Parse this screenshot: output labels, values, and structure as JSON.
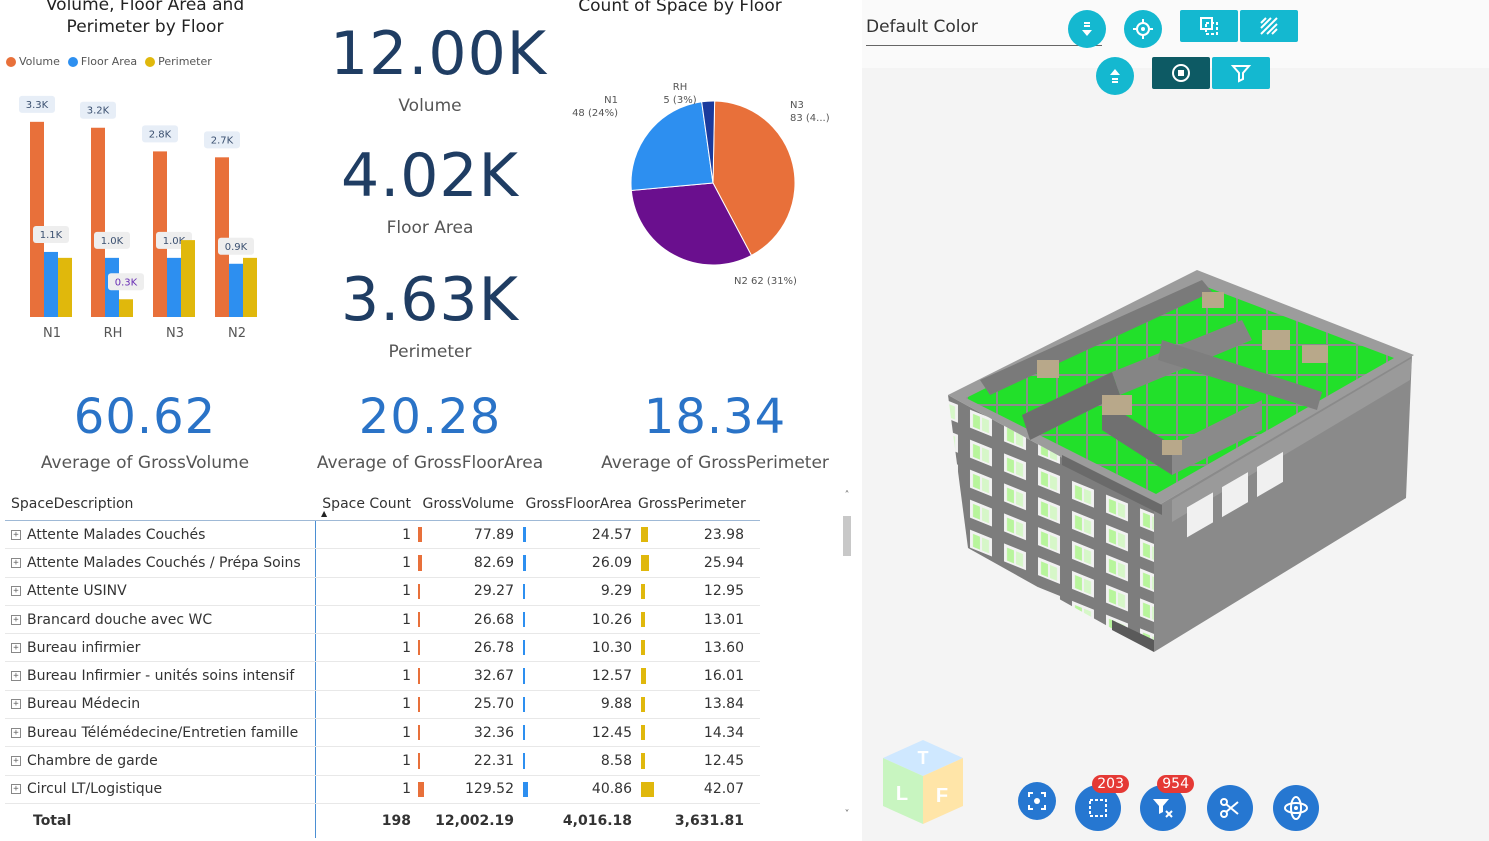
{
  "bar_chart": {
    "title": "Volume, Floor Area and Perimeter by Floor",
    "legend": [
      {
        "name": "Volume",
        "color": "#e8703a"
      },
      {
        "name": "Floor Area",
        "color": "#2d8ff0"
      },
      {
        "name": "Perimeter",
        "color": "#e0b80c"
      }
    ]
  },
  "chart_data": [
    {
      "type": "bar",
      "title": "Volume, Floor Area and Perimeter by Floor",
      "categories": [
        "N1",
        "RH",
        "N3",
        "N2"
      ],
      "series": [
        {
          "name": "Volume",
          "values": [
            3.3,
            3.2,
            2.8,
            2.7
          ],
          "labels": [
            "3.3K",
            "3.2K",
            "2.8K",
            "2.7K"
          ],
          "color": "#e8703a"
        },
        {
          "name": "Floor Area",
          "values": [
            1.1,
            1.0,
            1.0,
            0.9
          ],
          "labels": [
            "1.1K",
            "1.0K",
            "1.0K",
            "0.9K"
          ],
          "color": "#2d8ff0"
        },
        {
          "name": "Perimeter",
          "values": [
            1.0,
            0.3,
            1.3,
            1.0
          ],
          "labels": [
            "",
            "0.3K",
            "",
            ""
          ],
          "color": "#e0b80c"
        }
      ],
      "ylim": [
        0,
        3.5
      ],
      "legend_position": "top-left"
    },
    {
      "type": "pie",
      "title": "Count of Space by Floor",
      "slices": [
        {
          "name": "N3",
          "value": 83,
          "label": "N3\n83 (4...)",
          "color": "#e8703a"
        },
        {
          "name": "N2",
          "value": 62,
          "label": "N2 62 (31%)",
          "color": "#6a0f8e"
        },
        {
          "name": "N1",
          "value": 48,
          "label": "N1\n48 (24%)",
          "color": "#2d8ff0"
        },
        {
          "name": "RH",
          "value": 5,
          "label": "RH\n5 (3%)",
          "color": "#1a3a9c"
        }
      ]
    }
  ],
  "kpis": [
    {
      "value": "12.00K",
      "label": "Volume"
    },
    {
      "value": "4.02K",
      "label": "Floor Area"
    },
    {
      "value": "3.63K",
      "label": "Perimeter"
    }
  ],
  "averages": [
    {
      "value": "60.62",
      "label": "Average of GrossVolume"
    },
    {
      "value": "20.28",
      "label": "Average of GrossFloorArea"
    },
    {
      "value": "18.34",
      "label": "Average of GrossPerimeter"
    }
  ],
  "pie": {
    "title": "Count of Space by Floor"
  },
  "table": {
    "headers": [
      "SpaceDescription",
      "Space Count",
      "GrossVolume",
      "GrossFloorArea",
      "GrossPerimeter"
    ],
    "rows": [
      {
        "desc": "Attente Malades Couchés",
        "count": "1",
        "vol": "77.89",
        "area": "24.57",
        "per": "23.98"
      },
      {
        "desc": "Attente Malades Couchés / Prépa Soins",
        "count": "1",
        "vol": "82.69",
        "area": "26.09",
        "per": "25.94"
      },
      {
        "desc": "Attente USINV",
        "count": "1",
        "vol": "29.27",
        "area": "9.29",
        "per": "12.95"
      },
      {
        "desc": "Brancard douche avec WC",
        "count": "1",
        "vol": "26.68",
        "area": "10.26",
        "per": "13.01"
      },
      {
        "desc": "Bureau infirmier",
        "count": "1",
        "vol": "26.78",
        "area": "10.30",
        "per": "13.60"
      },
      {
        "desc": "Bureau Infirmier - unités soins intensif",
        "count": "1",
        "vol": "32.67",
        "area": "12.57",
        "per": "16.01"
      },
      {
        "desc": "Bureau Médecin",
        "count": "1",
        "vol": "25.70",
        "area": "9.88",
        "per": "13.84"
      },
      {
        "desc": "Bureau Télémédecine/Entretien famille",
        "count": "1",
        "vol": "32.36",
        "area": "12.45",
        "per": "14.34"
      },
      {
        "desc": "Chambre de garde",
        "count": "1",
        "vol": "22.31",
        "area": "8.58",
        "per": "12.45"
      },
      {
        "desc": "Circul LT/Logistique",
        "count": "1",
        "vol": "129.52",
        "area": "40.86",
        "per": "42.07"
      }
    ],
    "total": {
      "label": "Total",
      "count": "198",
      "vol": "12,002.19",
      "area": "4,016.18",
      "per": "3,631.81"
    }
  },
  "viewer": {
    "color_select": "Default Color",
    "badge_selection": "203",
    "badge_filter": "954",
    "cube_letters": [
      "T",
      "L",
      "F"
    ]
  }
}
